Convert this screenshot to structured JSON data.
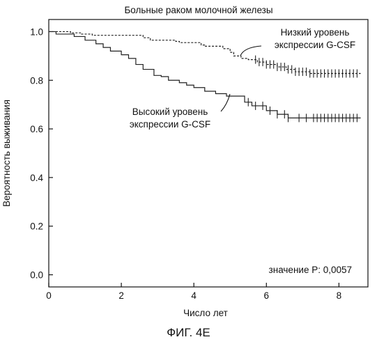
{
  "figure_caption": "ФИГ. 4E",
  "chart_data": {
    "type": "line",
    "title": "Больные раком молочной железы",
    "xlabel": "Число лет",
    "ylabel": "Вероятность выживания",
    "xlim": [
      0,
      8.8
    ],
    "ylim": [
      -0.05,
      1.05
    ],
    "x_ticks": [
      0,
      2,
      4,
      6,
      8
    ],
    "y_ticks": [
      0.0,
      0.2,
      0.4,
      0.6,
      0.8,
      1.0
    ],
    "x_tick_labels": [
      "0",
      "2",
      "4",
      "6",
      "8"
    ],
    "y_tick_labels": [
      "0.0",
      "0.2",
      "0.4",
      "0.6",
      "0.8",
      "1.0"
    ],
    "grid": false,
    "series": [
      {
        "name": "Низкий уровень экспрессии G-CSF",
        "style": "dashed",
        "color": "#222222",
        "label_lines": [
          "Низкий уровень",
          "экспрессии G-CSF"
        ],
        "x": [
          0,
          0.6,
          0.9,
          1.2,
          2.6,
          2.8,
          3.5,
          3.6,
          4.2,
          4.3,
          4.8,
          5.0,
          5.1,
          5.3,
          5.5,
          5.75,
          6.0,
          6.3,
          6.55,
          6.8,
          7.2,
          8.6
        ],
        "y": [
          1.0,
          0.995,
          0.99,
          0.985,
          0.975,
          0.965,
          0.96,
          0.955,
          0.945,
          0.94,
          0.93,
          0.915,
          0.9,
          0.89,
          0.885,
          0.875,
          0.865,
          0.855,
          0.845,
          0.835,
          0.828,
          0.828
        ],
        "censored_x": [
          5.7,
          5.8,
          5.9,
          6.0,
          6.1,
          6.2,
          6.3,
          6.4,
          6.5,
          6.6,
          6.7,
          6.8,
          6.9,
          7.0,
          7.1,
          7.2,
          7.3,
          7.4,
          7.5,
          7.6,
          7.7,
          7.8,
          7.9,
          8.0,
          8.1,
          8.2,
          8.3,
          8.4,
          8.5
        ]
      },
      {
        "name": "Высокий уровень экспрессии G-CSF",
        "style": "solid",
        "color": "#222222",
        "label_lines": [
          "Высокий уровень",
          "экспрессии G-CSF"
        ],
        "x": [
          0,
          0.2,
          0.7,
          1.0,
          1.3,
          1.5,
          1.7,
          2.0,
          2.2,
          2.4,
          2.6,
          2.9,
          3.1,
          3.3,
          3.6,
          3.8,
          4.0,
          4.3,
          4.6,
          4.9,
          5.4,
          5.6,
          6.0,
          6.3,
          6.6,
          8.6
        ],
        "y": [
          1.0,
          0.99,
          0.98,
          0.965,
          0.95,
          0.935,
          0.92,
          0.905,
          0.89,
          0.865,
          0.845,
          0.82,
          0.815,
          0.8,
          0.79,
          0.78,
          0.77,
          0.755,
          0.745,
          0.735,
          0.71,
          0.695,
          0.675,
          0.66,
          0.645,
          0.645
        ],
        "censored_x": [
          5.5,
          5.7,
          5.9,
          6.1,
          6.3,
          6.5,
          6.6,
          6.9,
          7.1,
          7.3,
          7.4,
          7.5,
          7.6,
          7.7,
          7.8,
          7.9,
          8.0,
          8.1,
          8.2,
          8.3,
          8.4,
          8.5
        ]
      }
    ],
    "annotation": "значение P: 0,0057"
  }
}
